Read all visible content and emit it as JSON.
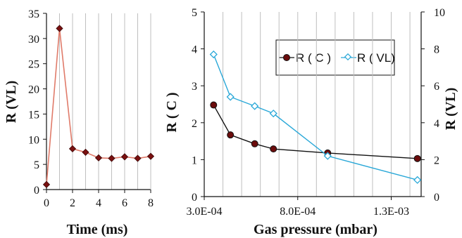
{
  "chart_data": [
    {
      "type": "line",
      "x": [
        0,
        1,
        2,
        3,
        4,
        5,
        6,
        7,
        8
      ],
      "series": [
        {
          "values": [
            1,
            32,
            8.1,
            7.4,
            6.3,
            6.2,
            6.5,
            6.2,
            6.6
          ],
          "color": "#e07b6a",
          "marker_color": "#7a1010"
        }
      ],
      "xlabel": "Time (ms)",
      "ylabel": "R (VL)",
      "xlim": [
        0,
        8
      ],
      "ylim": [
        0,
        35
      ],
      "xticks": [
        "0",
        "2",
        "4",
        "6",
        "8"
      ],
      "yticks": [
        "0",
        "5",
        "10",
        "15",
        "20",
        "25",
        "30",
        "35"
      ],
      "grid": "vertical"
    },
    {
      "type": "line",
      "x": [
        0.00035,
        0.00044,
        0.00057,
        0.00067,
        0.00096,
        0.00144
      ],
      "series": [
        {
          "name": "R ( C )",
          "axis": "left",
          "values": [
            2.48,
            1.67,
            1.43,
            1.29,
            1.18,
            1.03
          ],
          "color": "#111111",
          "marker_color": "#6b0c0c"
        },
        {
          "name": "R ( VL)",
          "axis": "right",
          "x": [
            0.00035,
            0.00044,
            0.00057,
            0.00067,
            0.00096,
            0.00144
          ],
          "values": [
            7.7,
            5.4,
            4.9,
            4.5,
            2.2,
            0.9
          ],
          "color": "#2aa8d8",
          "marker_color": "#ffffff"
        }
      ],
      "xlabel": "Gas pressure (mbar)",
      "ylabel": "R ( C )",
      "y2label": "R (VL)",
      "xlim": [
        0.0003,
        0.00146
      ],
      "ylim": [
        0,
        5
      ],
      "y2lim": [
        0,
        10
      ],
      "xticks": [
        "3.0E-04",
        "8.0E-04",
        "1.3E-03"
      ],
      "yticks": [
        "0",
        "1",
        "2",
        "3",
        "4",
        "5"
      ],
      "y2ticks": [
        "0",
        "2",
        "4",
        "6",
        "8",
        "10"
      ],
      "legend": "top-right",
      "grid": "vertical"
    }
  ]
}
